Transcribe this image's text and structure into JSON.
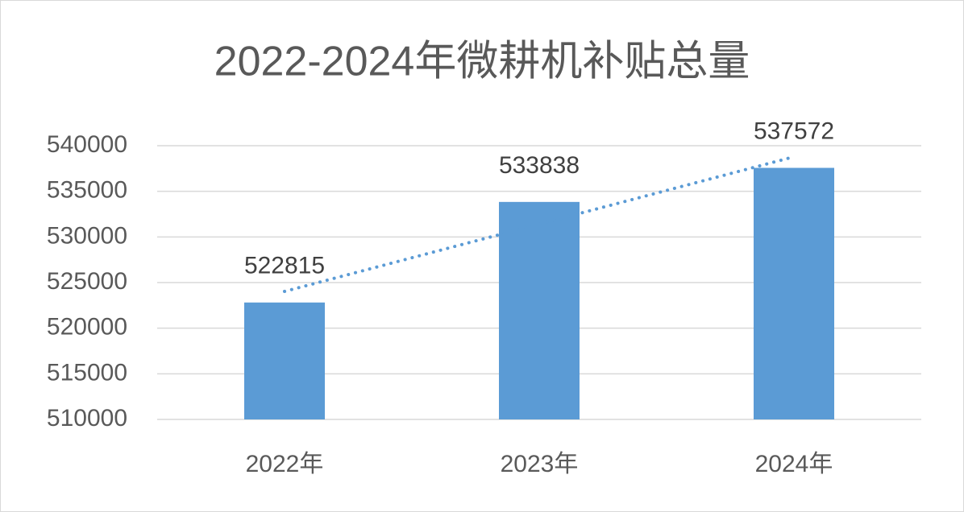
{
  "chart_data": {
    "type": "bar",
    "title": "2022-2024年微耕机补贴总量",
    "categories": [
      "2022年",
      "2023年",
      "2024年"
    ],
    "values": [
      522815,
      533838,
      537572
    ],
    "color": "#5b9bd5",
    "ylim": [
      510000,
      540000
    ],
    "yticks": [
      510000,
      515000,
      520000,
      525000,
      530000,
      535000,
      540000
    ],
    "grid": true,
    "data_labels": true,
    "trendline": {
      "type": "linear",
      "color": "#5b9bd5",
      "style": "dotted"
    }
  }
}
